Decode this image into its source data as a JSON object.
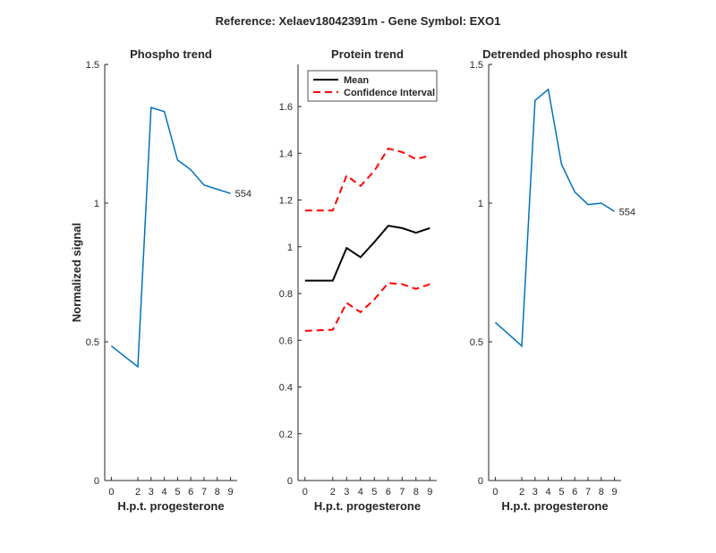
{
  "suptitle": "Reference:  Xelaev18042391m - Gene Symbol:  EXO1",
  "colors": {
    "phospho": "#0072BD",
    "mean": "#000000",
    "ci": "#FF0000",
    "axis": "#262626"
  },
  "chart_data": [
    {
      "type": "line",
      "title": "Phospho trend",
      "xlabel": "H.p.t. progesterone",
      "ylabel": "Normalized signal",
      "xlim": [
        -0.5,
        9.5
      ],
      "ylim": [
        0,
        1.5
      ],
      "xticks": [
        0,
        2,
        3,
        4,
        5,
        6,
        7,
        8,
        9
      ],
      "yticks": [
        0,
        0.5,
        1,
        1.5
      ],
      "ytick_labels": [
        "0",
        "0.5",
        "1",
        "1.5"
      ],
      "series": [
        {
          "color": "#0072BD",
          "style": "solid",
          "x": [
            0,
            2,
            3,
            4,
            5,
            6,
            7,
            8,
            9
          ],
          "y": [
            0.485,
            0.41,
            1.345,
            1.33,
            1.155,
            1.12,
            1.065,
            1.05,
            1.035
          ]
        }
      ],
      "annotations": [
        {
          "text": "554",
          "x": 9,
          "y": 1.035
        }
      ]
    },
    {
      "type": "line",
      "title": "Protein trend",
      "xlabel": "H.p.t. progesterone",
      "ylabel": "",
      "xlim": [
        -0.5,
        9.5
      ],
      "ylim": [
        0,
        1.78
      ],
      "xticks": [
        0,
        2,
        3,
        4,
        5,
        6,
        7,
        8,
        9
      ],
      "yticks": [
        0,
        0.2,
        0.4,
        0.6,
        0.8,
        1,
        1.2,
        1.4,
        1.6
      ],
      "ytick_labels": [
        "0",
        "0.2",
        "0.4",
        "0.6",
        "0.8",
        "1",
        "1.2",
        "1.4",
        "1.6"
      ],
      "legend": {
        "position": "top-left",
        "entries": [
          {
            "name": "Mean",
            "color": "#000000",
            "style": "solid"
          },
          {
            "name": "Confidence Interval",
            "color": "#FF0000",
            "style": "dashed"
          }
        ]
      },
      "series": [
        {
          "name": "Mean",
          "color": "#000000",
          "style": "solid",
          "x": [
            0,
            2,
            3,
            4,
            5,
            6,
            7,
            8,
            9
          ],
          "y": [
            0.855,
            0.855,
            0.995,
            0.955,
            1.02,
            1.09,
            1.08,
            1.06,
            1.08
          ]
        },
        {
          "name": "Confidence Interval",
          "color": "#FF0000",
          "style": "dashed",
          "x": [
            0,
            2,
            3,
            4,
            5,
            6,
            7,
            8,
            9
          ],
          "y": [
            1.155,
            1.155,
            1.305,
            1.26,
            1.325,
            1.42,
            1.405,
            1.375,
            1.39
          ]
        },
        {
          "color": "#FF0000",
          "style": "dashed",
          "x": [
            0,
            2,
            3,
            4,
            5,
            6,
            7,
            8,
            9
          ],
          "y": [
            0.64,
            0.645,
            0.76,
            0.72,
            0.775,
            0.845,
            0.84,
            0.82,
            0.84
          ]
        }
      ],
      "annotations": []
    },
    {
      "type": "line",
      "title": "Detrended phospho result",
      "xlabel": "H.p.t. progesterone",
      "ylabel": "",
      "xlim": [
        -0.5,
        9.5
      ],
      "ylim": [
        0,
        1.5
      ],
      "xticks": [
        0,
        2,
        3,
        4,
        5,
        6,
        7,
        8,
        9
      ],
      "yticks": [
        0,
        0.5,
        1,
        1.5
      ],
      "ytick_labels": [
        "0",
        "0.5",
        "1",
        "1.5"
      ],
      "series": [
        {
          "color": "#0072BD",
          "style": "solid",
          "x": [
            0,
            2,
            3,
            4,
            5,
            6,
            7,
            8,
            9
          ],
          "y": [
            0.57,
            0.485,
            1.37,
            1.41,
            1.14,
            1.04,
            0.995,
            1.0,
            0.97
          ]
        }
      ],
      "annotations": [
        {
          "text": "554",
          "x": 9,
          "y": 0.97
        }
      ]
    }
  ]
}
